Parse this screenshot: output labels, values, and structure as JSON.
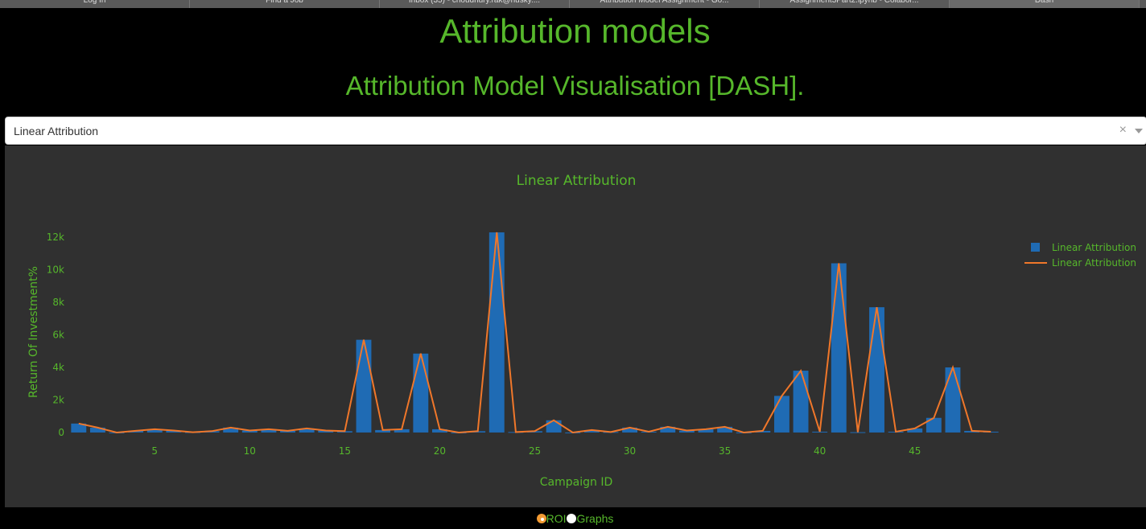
{
  "browser_tabs": [
    "Log In",
    "Find a Job",
    "Inbox (35) - choudhury.rak@husky....",
    "Attribution Model Assignment - Go...",
    "Assignment3Part2.ipynb - Colabor...",
    "Dash"
  ],
  "header": {
    "title": "Attribution models",
    "subtitle": "Attribution Model Visualisation [DASH]."
  },
  "dropdown": {
    "selected": "Linear Attribution",
    "clear_symbol": "×"
  },
  "radio": {
    "options": [
      "ROI",
      "Graphs"
    ],
    "selected": "ROI"
  },
  "colors": {
    "accent": "#56b72b",
    "bar": "#1f6bb4",
    "line": "#f0772a",
    "plot_bg": "#303030"
  },
  "chart_data": {
    "type": "bar",
    "title": "Linear Attribution",
    "xlabel": "Campaign ID",
    "ylabel": "Return Of Investment%",
    "x": [
      1,
      2,
      3,
      4,
      5,
      6,
      7,
      8,
      9,
      10,
      11,
      12,
      13,
      14,
      15,
      16,
      17,
      18,
      19,
      20,
      21,
      22,
      23,
      24,
      25,
      26,
      27,
      28,
      29,
      30,
      31,
      32,
      33,
      34,
      35,
      36,
      37,
      38,
      39,
      40,
      41,
      42,
      43,
      44,
      45,
      46,
      47,
      48,
      49
    ],
    "xlim": [
      0.5,
      49.5
    ],
    "ylim": [
      -150,
      12500
    ],
    "xticks": [
      5,
      10,
      15,
      20,
      25,
      30,
      35,
      40,
      45
    ],
    "yticks": [
      0,
      2000,
      4000,
      6000,
      8000,
      10000,
      12000
    ],
    "ytick_labels": [
      "0",
      "2k",
      "4k",
      "6k",
      "8k",
      "10k",
      "12k"
    ],
    "series": [
      {
        "name": "Linear Attribution",
        "type": "bar",
        "values": [
          550,
          300,
          0,
          100,
          200,
          120,
          20,
          80,
          300,
          120,
          200,
          100,
          250,
          120,
          80,
          5700,
          150,
          200,
          4850,
          200,
          0,
          80,
          12300,
          30,
          80,
          750,
          0,
          150,
          30,
          300,
          50,
          350,
          120,
          200,
          350,
          0,
          100,
          2250,
          3800,
          50,
          10400,
          20,
          7700,
          50,
          250,
          900,
          4000,
          100,
          50
        ]
      },
      {
        "name": "Linear Attribution",
        "type": "line",
        "values": [
          550,
          300,
          0,
          100,
          200,
          120,
          20,
          80,
          300,
          120,
          200,
          100,
          250,
          120,
          80,
          5700,
          150,
          200,
          4850,
          200,
          0,
          80,
          12300,
          30,
          80,
          750,
          0,
          150,
          30,
          300,
          50,
          350,
          120,
          200,
          350,
          0,
          100,
          2250,
          3800,
          50,
          10400,
          20,
          7700,
          50,
          250,
          900,
          4000,
          100,
          50
        ]
      }
    ],
    "legend_position": "top-right",
    "grid": false
  }
}
